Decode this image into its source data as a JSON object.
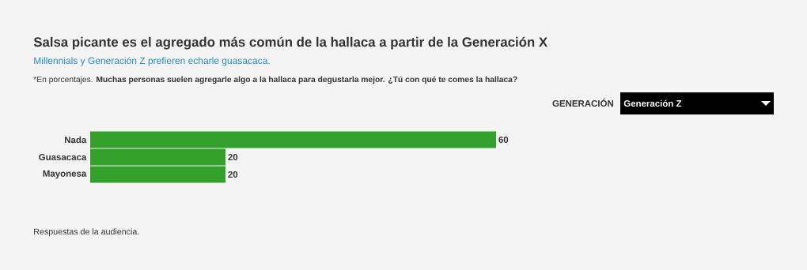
{
  "chart_data": {
    "type": "bar",
    "orientation": "horizontal",
    "title": "Salsa picante es el agregado más común de la hallaca a partir de la Generación X",
    "subtitle": "Millennials y Generación Z prefieren echarle guasacaca.",
    "annotations": [
      "*En porcentajes. **Muchas personas suelen agregarle algo a la hallaca para degustarla mejor. ¿Tú con qué te comes la hallaca?**",
      "GENERACIÓN",
      "Generación Z",
      "Respuestas de la audiencia."
    ],
    "categories": [
      "Nada",
      "Guasacaca",
      "Mayonesa"
    ],
    "values": [
      60,
      20,
      20
    ],
    "color": "#33a02c",
    "data_labels": true
  }
}
